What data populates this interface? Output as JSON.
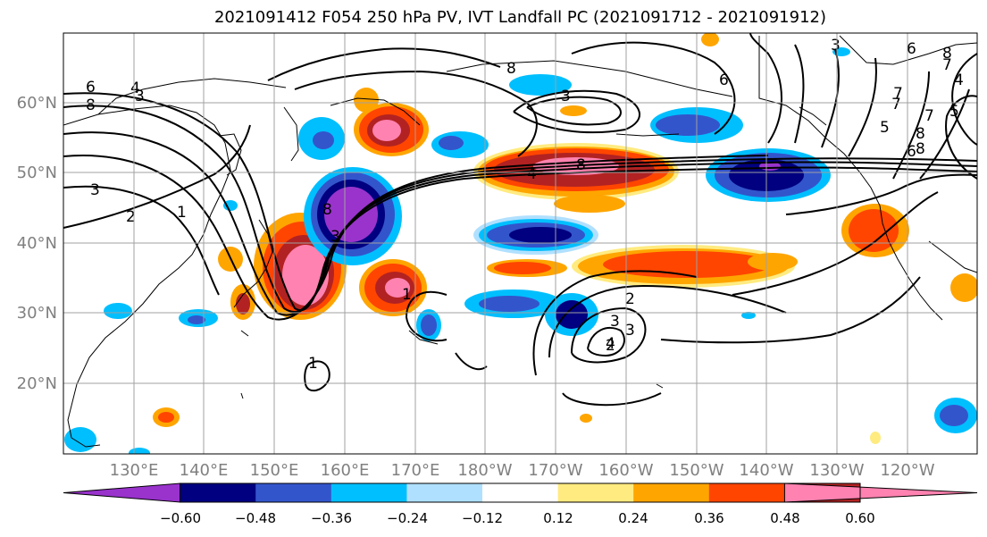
{
  "title": "2021091412 F054 250 hPa PV, IVT Landfall PC (2021091712 - 2021091912)",
  "lat_labels": [
    "60°N",
    "50°N",
    "40°N",
    "30°N",
    "20°N"
  ],
  "lon_labels": [
    "130°E",
    "140°E",
    "150°E",
    "160°E",
    "170°E",
    "180°W",
    "170°W",
    "160°W",
    "150°W",
    "140°W",
    "130°W",
    "120°W"
  ],
  "colorbar": {
    "ticks": [
      "−0.60",
      "−0.48",
      "−0.36",
      "−0.24",
      "−0.12",
      "0.12",
      "0.24",
      "0.36",
      "0.48",
      "0.60"
    ],
    "colors": [
      "#9933cc",
      "#000080",
      "#3355cc",
      "#00bfff",
      "#b0e0ff",
      "#ffffff",
      "#ffeb80",
      "#ffa500",
      "#ff4500",
      "#b22222",
      "#ff82b0"
    ]
  },
  "contour_labels": [
    "6",
    "8",
    "4",
    "3",
    "3",
    "2",
    "1",
    "8",
    "3",
    "4",
    "3",
    "8",
    "8",
    "6",
    "3",
    "7",
    "6",
    "8",
    "7",
    "8",
    "5",
    "7",
    "4",
    "6",
    "5",
    "8",
    "7",
    "3",
    "2",
    "1",
    "2",
    "3",
    "4",
    "1"
  ]
}
